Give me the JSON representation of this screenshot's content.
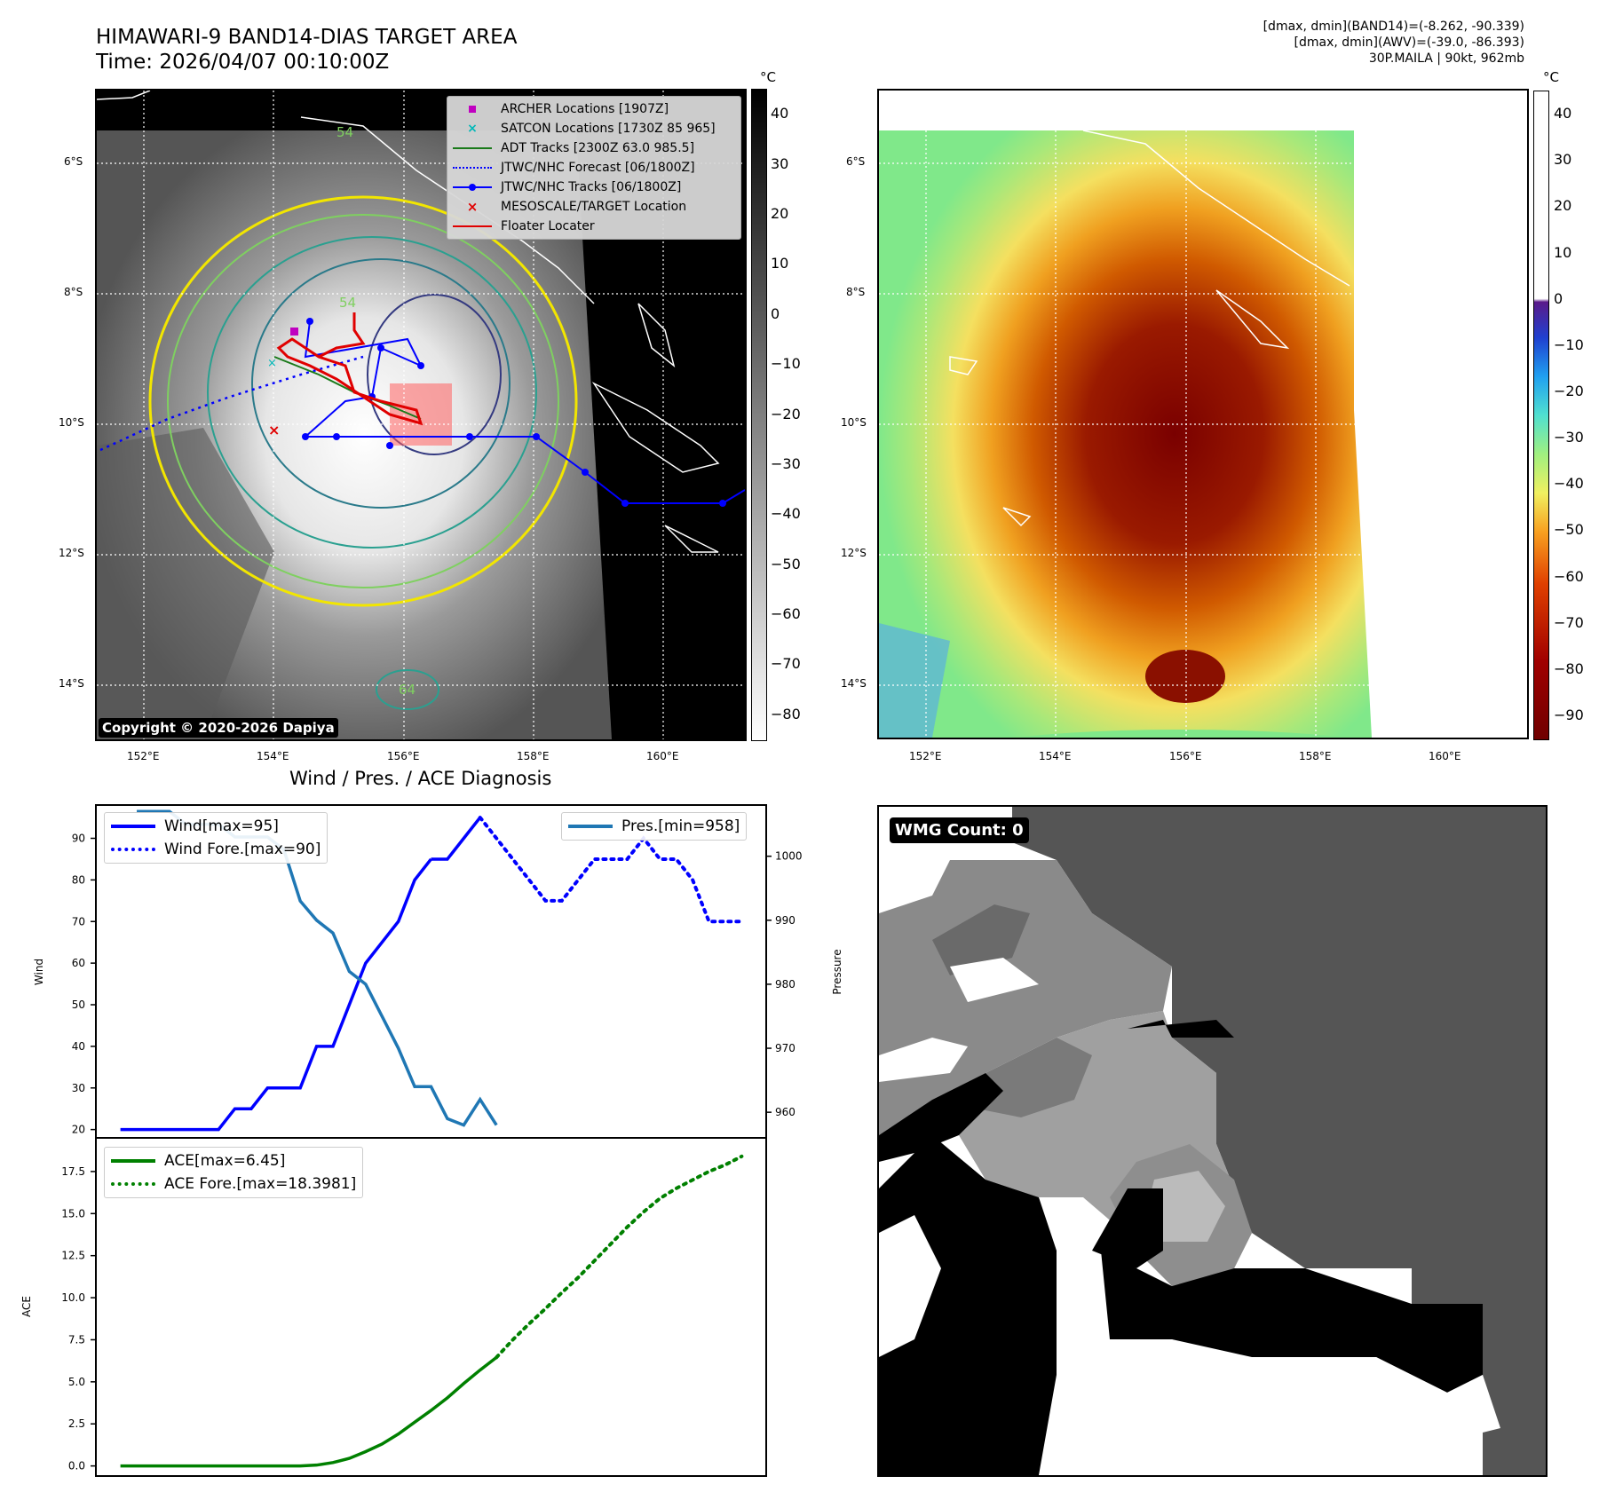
{
  "header": {
    "title_line1": "HIMAWARI-9 BAND14-DIAS TARGET AREA",
    "title_line2": "Time: 2026/04/07 00:10:00Z",
    "meta_line1": "[dmax, dmin](BAND14)=(-8.262, -90.339)",
    "meta_line2": "[dmax, dmin](AWV)=(-39.0, -86.393)",
    "meta_line3": "30P.MAILA | 90kt, 962mb"
  },
  "map_axes": {
    "lat_labels": [
      "6°S",
      "8°S",
      "10°S",
      "12°S",
      "14°S"
    ],
    "lon_labels": [
      "152°E",
      "154°E",
      "156°E",
      "158°E",
      "160°E"
    ]
  },
  "colorbar_left": {
    "unit": "°C",
    "ticks": [
      "40",
      "30",
      "20",
      "10",
      "0",
      "−10",
      "−20",
      "−30",
      "−40",
      "−50",
      "−60",
      "−70",
      "−80"
    ]
  },
  "colorbar_right": {
    "unit": "°C",
    "ticks": [
      "40",
      "30",
      "20",
      "10",
      "0",
      "−10",
      "−20",
      "−30",
      "−40",
      "−50",
      "−60",
      "−70",
      "−80",
      "−90"
    ]
  },
  "map_legend": [
    {
      "label": "ARCHER Locations [1907Z]",
      "color": "#c000c0",
      "style": "square"
    },
    {
      "label": "SATCON Locations [1730Z 85 965]",
      "color": "#00b8b8",
      "style": "x"
    },
    {
      "label": "ADT Tracks [2300Z 63.0 985.5]",
      "color": "#1a7a1a",
      "style": "line"
    },
    {
      "label": "JTWC/NHC Forecast [06/1800Z]",
      "color": "#0000ff",
      "style": "dotted"
    },
    {
      "label": "JTWC/NHC Tracks [06/1800Z]",
      "color": "#0000ff",
      "style": "line-dot"
    },
    {
      "label": "MESOSCALE/TARGET Location",
      "color": "#e00000",
      "style": "x"
    },
    {
      "label": "Floater Locater",
      "color": "#e00000",
      "style": "line"
    }
  ],
  "contour_labels": [
    "54",
    "54",
    "64"
  ],
  "copyright": "Copyright © 2020-2026 Dapiya",
  "wmg": {
    "label": "WMG Count: 0"
  },
  "chart_data": [
    {
      "type": "line",
      "title": "Wind / Pres. / ACE Diagnosis",
      "xlabel": "",
      "ylabel": "Wind",
      "ylabel_right": "Pressure",
      "ylim": [
        18,
        98
      ],
      "ylim_right": [
        956,
        1008
      ],
      "y_ticks": [
        20,
        30,
        40,
        50,
        60,
        70,
        80,
        90
      ],
      "y_ticks_right": [
        960,
        970,
        980,
        990,
        1000
      ],
      "series": [
        {
          "name": "Wind[max=95]",
          "color": "#0000ff",
          "style": "solid",
          "x": [
            0,
            1,
            2,
            3,
            4,
            5,
            6,
            7,
            8,
            9,
            10,
            11,
            12,
            13,
            14,
            15,
            16,
            17,
            18,
            19
          ],
          "values": [
            20,
            20,
            20,
            20,
            20,
            20,
            20,
            25,
            25,
            30,
            30,
            30,
            40,
            40,
            50,
            60,
            65,
            70,
            80,
            85
          ]
        },
        {
          "name": "Wind[max=95]",
          "color": "#0000ff",
          "style": "solid",
          "x": [
            19,
            20,
            21,
            22
          ],
          "values": [
            85,
            85,
            90,
            95
          ]
        },
        {
          "name": "Wind Fore.[max=90]",
          "color": "#0000ff",
          "style": "dotted",
          "x": [
            22,
            23,
            24,
            25,
            26,
            27,
            28,
            29,
            30,
            31,
            32,
            33,
            34,
            35,
            36,
            37,
            38
          ],
          "values": [
            95,
            90,
            85,
            80,
            75,
            75,
            80,
            85,
            85,
            85,
            90,
            85,
            85,
            80,
            70,
            70,
            70
          ]
        },
        {
          "name": "Pres.[min=958]",
          "color": "#1f77b4",
          "style": "solid",
          "axis": "right",
          "x": [
            1,
            2,
            3,
            4,
            5,
            6,
            7,
            8,
            9,
            10,
            11,
            12,
            13,
            14,
            15,
            16,
            17,
            18,
            19,
            20,
            21,
            22,
            23
          ],
          "values": [
            1007,
            1007,
            1007,
            1005,
            1005,
            1005,
            1003,
            1003,
            1003,
            1001,
            993,
            990,
            988,
            982,
            980,
            975,
            970,
            964,
            964,
            959,
            958,
            962,
            958
          ]
        }
      ]
    },
    {
      "type": "line",
      "title": "",
      "xlabel": "",
      "ylabel": "ACE",
      "ylim": [
        -0.6,
        19.5
      ],
      "y_ticks": [
        "0.0",
        "2.5",
        "5.0",
        "7.5",
        "10.0",
        "12.5",
        "15.0",
        "17.5"
      ],
      "series": [
        {
          "name": "ACE[max=6.45]",
          "color": "#008000",
          "style": "solid",
          "x": [
            0,
            4,
            8,
            10,
            11,
            12,
            13,
            14,
            15,
            16,
            17,
            18,
            19,
            20,
            21,
            22,
            23
          ],
          "values": [
            0,
            0,
            0,
            0,
            0,
            0.05,
            0.2,
            0.45,
            0.85,
            1.3,
            1.9,
            2.6,
            3.3,
            4.05,
            4.9,
            5.7,
            6.45
          ]
        },
        {
          "name": "ACE Fore.[max=18.3981]",
          "color": "#008000",
          "style": "dotted",
          "x": [
            23,
            24,
            25,
            26,
            27,
            28,
            29,
            30,
            31,
            32,
            33,
            34,
            35,
            36,
            37,
            38
          ],
          "values": [
            6.45,
            7.5,
            8.45,
            9.35,
            10.3,
            11.2,
            12.2,
            13.2,
            14.2,
            15.1,
            15.9,
            16.5,
            17,
            17.5,
            17.9,
            18.4
          ]
        }
      ]
    }
  ]
}
